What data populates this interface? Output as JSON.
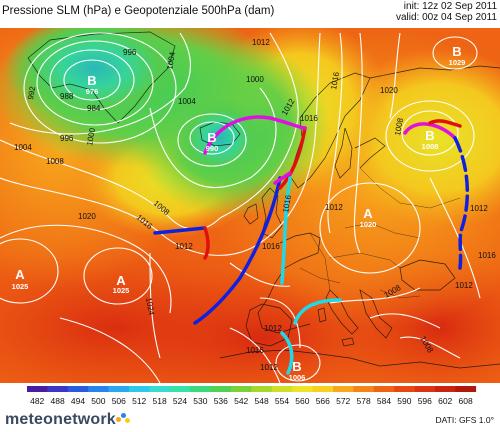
{
  "header": {
    "title": "Pressione SLM (hPa) e Geopotenziale 500hPa (dam)",
    "init": "init: 12z 02 Sep 2011",
    "valid": "valid: 00z 04 Sep 2011"
  },
  "centers": [
    {
      "type": "B",
      "value": "976"
    },
    {
      "type": "B",
      "value": "990"
    },
    {
      "type": "B",
      "value": "1008"
    },
    {
      "type": "A",
      "value": "1025"
    },
    {
      "type": "A",
      "value": "1025"
    },
    {
      "type": "A",
      "value": "1020"
    },
    {
      "type": "B",
      "value": "1006"
    },
    {
      "type": "B",
      "value": "1029"
    }
  ],
  "isobar_labels": [
    "996",
    "1004",
    "992",
    "988",
    "984",
    "996",
    "1000",
    "1004",
    "1012",
    "1016",
    "1000",
    "1004",
    "1008",
    "1012",
    "1016",
    "1020",
    "1008",
    "1016",
    "1020",
    "1008",
    "1012",
    "1016",
    "1024",
    "1012",
    "1016",
    "1012",
    "1008",
    "1016",
    "1012",
    "1012",
    "1008",
    "1012",
    "1016"
  ],
  "scale": {
    "values": [
      "482",
      "488",
      "494",
      "500",
      "506",
      "512",
      "518",
      "524",
      "530",
      "536",
      "542",
      "548",
      "554",
      "560",
      "566",
      "572",
      "578",
      "584",
      "590",
      "596",
      "602",
      "608"
    ],
    "colors": [
      "#4a1aa0",
      "#3a36c8",
      "#2a5ae0",
      "#2a82ee",
      "#2aa8f0",
      "#2ec8ea",
      "#34dcd2",
      "#36e2a8",
      "#3cd87c",
      "#52d052",
      "#7ad038",
      "#a6d82c",
      "#cce02a",
      "#ece428",
      "#f8d020",
      "#f8a81c",
      "#f48418",
      "#ee6414",
      "#e64812",
      "#dc3410",
      "#c82410",
      "#b0180e"
    ]
  },
  "footer": {
    "logo": "meteonetwork",
    "dati": "DATI: GFS 1.0°"
  },
  "colors": {
    "cold_front": "#1020e0",
    "warm_front": "#e01010",
    "occluded": "#e010e0",
    "trough": "#20d8e8",
    "isobar": "#ffffff"
  }
}
